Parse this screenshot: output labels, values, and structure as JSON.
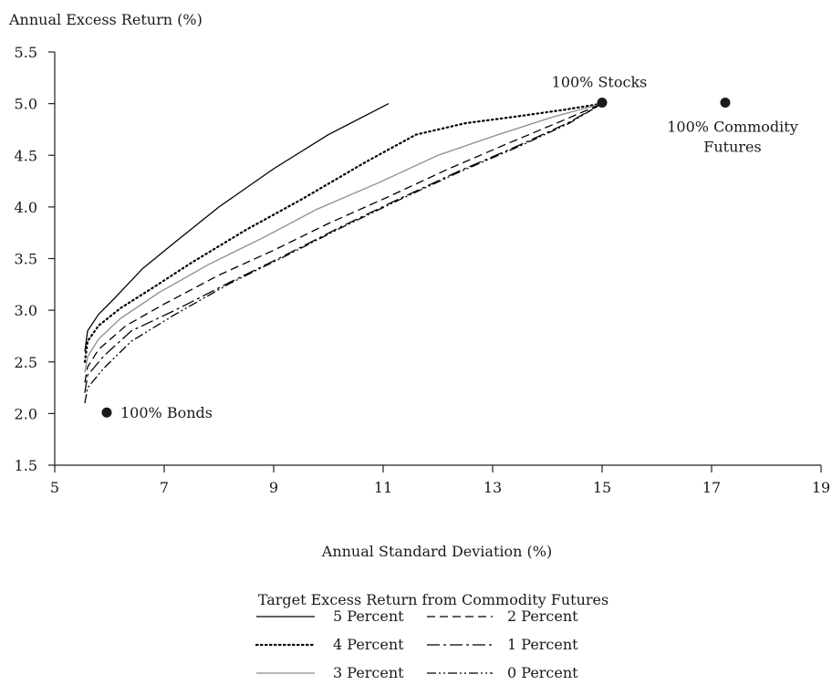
{
  "chart_data": {
    "type": "line",
    "ylabel": "Annual Excess Return (%)",
    "xlabel": "Annual Standard Deviation (%)",
    "xlim": [
      5,
      19
    ],
    "ylim": [
      1.5,
      5.5
    ],
    "x_ticks": [
      "5",
      "7",
      "9",
      "11",
      "13",
      "15",
      "17",
      "19"
    ],
    "y_ticks": [
      "1.5",
      "2.0",
      "2.5",
      "3.0",
      "3.5",
      "4.0",
      "4.5",
      "5.0",
      "5.5"
    ],
    "grid": false,
    "legend_title": "Target Excess Return from Commodity Futures",
    "legend_placement": "bottom",
    "series": [
      {
        "name": "5 Percent",
        "style": "solid",
        "color": "#000000",
        "points": [
          [
            5.55,
            2.6
          ],
          [
            5.6,
            2.8
          ],
          [
            5.8,
            2.96
          ],
          [
            6.1,
            3.12
          ],
          [
            6.6,
            3.4
          ],
          [
            7.2,
            3.66
          ],
          [
            8.0,
            4.0
          ],
          [
            9.0,
            4.37
          ],
          [
            10.0,
            4.7
          ],
          [
            11.1,
            5.0
          ]
        ]
      },
      {
        "name": "4 Percent",
        "style": "dotted",
        "color": "#000000",
        "points": [
          [
            5.55,
            2.5
          ],
          [
            5.6,
            2.7
          ],
          [
            5.8,
            2.85
          ],
          [
            6.2,
            3.02
          ],
          [
            6.8,
            3.22
          ],
          [
            7.5,
            3.46
          ],
          [
            8.5,
            3.78
          ],
          [
            9.5,
            4.07
          ],
          [
            10.7,
            4.44
          ],
          [
            11.6,
            4.7
          ],
          [
            12.5,
            4.81
          ],
          [
            13.5,
            4.88
          ],
          [
            14.3,
            4.94
          ],
          [
            15.0,
            5.0
          ]
        ]
      },
      {
        "name": "3 Percent",
        "style": "solid",
        "color": "#8c8c8c",
        "points": [
          [
            5.55,
            2.4
          ],
          [
            5.6,
            2.55
          ],
          [
            5.8,
            2.72
          ],
          [
            6.2,
            2.92
          ],
          [
            6.9,
            3.17
          ],
          [
            7.8,
            3.44
          ],
          [
            8.8,
            3.7
          ],
          [
            9.8,
            3.98
          ],
          [
            10.9,
            4.23
          ],
          [
            12.0,
            4.5
          ],
          [
            13.1,
            4.7
          ],
          [
            14.1,
            4.87
          ],
          [
            15.0,
            5.0
          ]
        ]
      },
      {
        "name": "2 Percent",
        "style": "dashed",
        "color": "#000000",
        "points": [
          [
            5.55,
            2.3
          ],
          [
            5.6,
            2.45
          ],
          [
            5.8,
            2.62
          ],
          [
            6.3,
            2.85
          ],
          [
            7.0,
            3.06
          ],
          [
            8.0,
            3.34
          ],
          [
            9.0,
            3.58
          ],
          [
            10.0,
            3.84
          ],
          [
            11.1,
            4.1
          ],
          [
            12.2,
            4.37
          ],
          [
            13.3,
            4.62
          ],
          [
            14.3,
            4.84
          ],
          [
            15.0,
            5.0
          ]
        ]
      },
      {
        "name": "1 Percent",
        "style": "dashdot",
        "color": "#000000",
        "points": [
          [
            5.55,
            2.2
          ],
          [
            5.6,
            2.37
          ],
          [
            5.9,
            2.56
          ],
          [
            6.4,
            2.8
          ],
          [
            7.2,
            3.0
          ],
          [
            8.2,
            3.27
          ],
          [
            9.2,
            3.53
          ],
          [
            10.2,
            3.8
          ],
          [
            11.3,
            4.08
          ],
          [
            12.4,
            4.35
          ],
          [
            13.5,
            4.6
          ],
          [
            14.4,
            4.82
          ],
          [
            15.0,
            5.0
          ]
        ]
      },
      {
        "name": "0 Percent",
        "style": "dashdotdot",
        "color": "#000000",
        "points": [
          [
            5.55,
            2.1
          ],
          [
            5.6,
            2.25
          ],
          [
            5.9,
            2.44
          ],
          [
            6.4,
            2.7
          ],
          [
            7.2,
            2.96
          ],
          [
            8.2,
            3.26
          ],
          [
            9.2,
            3.52
          ],
          [
            10.2,
            3.79
          ],
          [
            11.3,
            4.07
          ],
          [
            12.4,
            4.34
          ],
          [
            13.5,
            4.59
          ],
          [
            14.4,
            4.81
          ],
          [
            15.0,
            5.0
          ]
        ]
      }
    ],
    "markers": [
      {
        "label": "100% Bonds",
        "x": 5.95,
        "y": 2.01,
        "label_pos": "right"
      },
      {
        "label": "100% Stocks",
        "x": 15.0,
        "y": 5.01,
        "label_pos": "above"
      },
      {
        "label": "100% Commodity Futures",
        "x": 17.25,
        "y": 5.01,
        "label_pos": "below",
        "label_lines": [
          "100% Commodity",
          "Futures"
        ]
      }
    ]
  }
}
